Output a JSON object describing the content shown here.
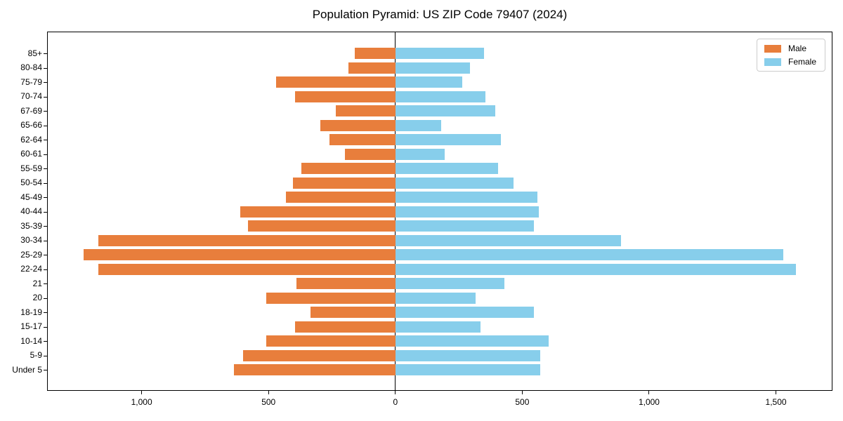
{
  "chart_data": {
    "type": "bar",
    "variant": "population-pyramid",
    "title": "Population Pyramid: US ZIP Code 79407 (2024)",
    "categories": [
      "85+",
      "80-84",
      "75-79",
      "70-74",
      "67-69",
      "65-66",
      "62-64",
      "60-61",
      "55-59",
      "50-54",
      "45-49",
      "40-44",
      "35-39",
      "30-34",
      "25-29",
      "22-24",
      "21",
      "20",
      "18-19",
      "15-17",
      "10-14",
      "5-9",
      "Under 5"
    ],
    "series": [
      {
        "name": "Male",
        "color": "#E87E3C",
        "side": "left",
        "values": [
          160,
          185,
          470,
          395,
          235,
          295,
          260,
          200,
          370,
          405,
          430,
          610,
          580,
          1170,
          1230,
          1170,
          390,
          510,
          335,
          395,
          510,
          600,
          635
        ]
      },
      {
        "name": "Female",
        "color": "#87CEEB",
        "side": "right",
        "values": [
          350,
          295,
          265,
          355,
          395,
          180,
          415,
          195,
          405,
          465,
          560,
          565,
          545,
          890,
          1530,
          1580,
          430,
          315,
          545,
          335,
          605,
          570,
          570
        ]
      }
    ],
    "xlim": [
      -1370,
      1720
    ],
    "xticks": [
      -1000,
      -500,
      0,
      500,
      1000,
      1500
    ],
    "xtick_labels": [
      "1,000",
      "500",
      "0",
      "500",
      "1,000",
      "1,500"
    ],
    "legend_position": "upper right",
    "grid": false,
    "zero_line_color": "#000000",
    "background_color": "#ffffff"
  }
}
